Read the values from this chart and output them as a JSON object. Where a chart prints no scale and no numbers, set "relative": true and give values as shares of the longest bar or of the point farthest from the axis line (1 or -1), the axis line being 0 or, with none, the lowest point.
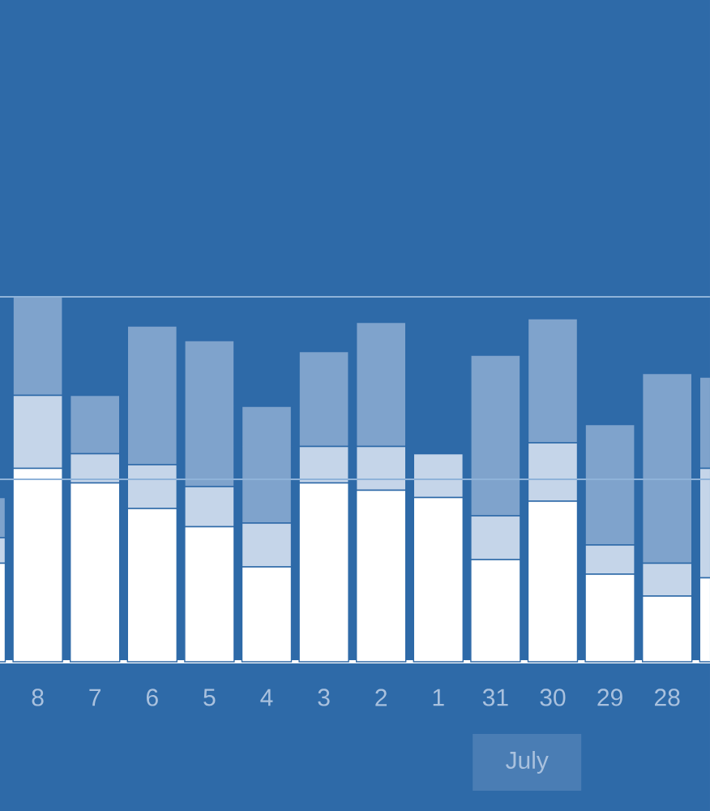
{
  "chart_data": {
    "type": "bar",
    "stacked": true,
    "relative": true,
    "categories": [
      null,
      "8",
      "7",
      "6",
      "5",
      "4",
      "3",
      "2",
      "1",
      "31",
      "30",
      "29",
      "28",
      null
    ],
    "series": [
      {
        "color": "#ffffff",
        "values": [
          0.27,
          0.53,
          0.49,
          0.42,
          0.37,
          0.26,
          0.49,
          0.47,
          0.45,
          0.28,
          0.44,
          0.24,
          0.18,
          0.23
        ]
      },
      {
        "color": "#c5d5e9",
        "values": [
          0.07,
          0.2,
          0.08,
          0.12,
          0.11,
          0.12,
          0.1,
          0.12,
          0.12,
          0.12,
          0.16,
          0.08,
          0.09,
          0.3
        ]
      },
      {
        "color": "#7fa3cc",
        "values": [
          0.11,
          0.27,
          0.16,
          0.38,
          0.4,
          0.32,
          0.26,
          0.34,
          0,
          0.44,
          0.34,
          0.33,
          0.52,
          0.25
        ]
      }
    ],
    "ref_lines": [
      {
        "axis": "y",
        "value": 1,
        "color": "#8fb3d9"
      },
      {
        "axis": "y",
        "value": 0.5,
        "color": "#8fb3d9"
      }
    ],
    "annotations": [
      "July"
    ]
  }
}
